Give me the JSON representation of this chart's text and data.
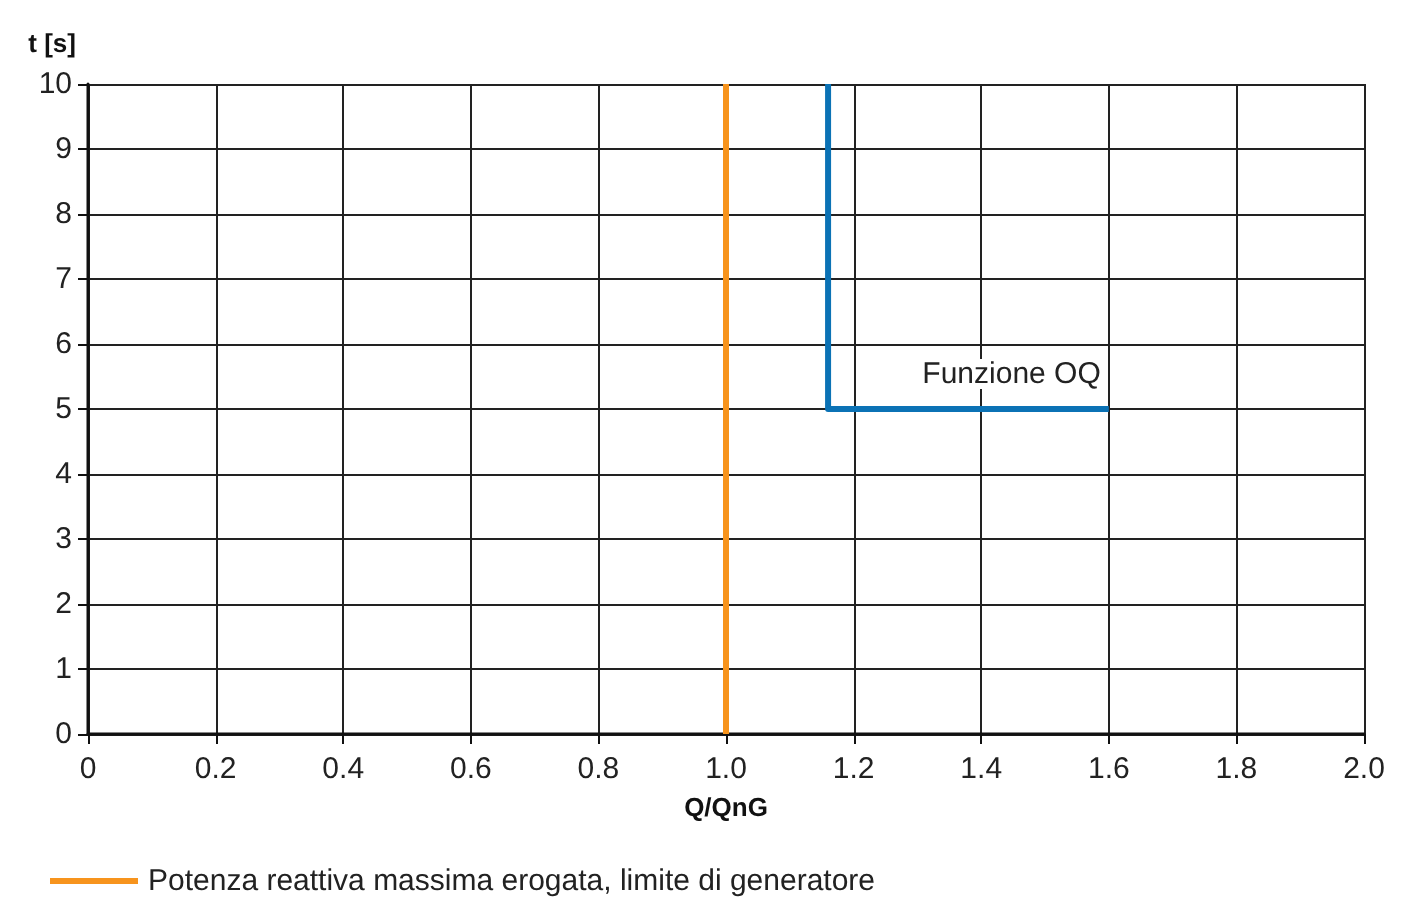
{
  "chart_data": {
    "type": "line",
    "xlabel": "Q/QnG",
    "ylabel": "t [s]",
    "xlim": [
      0,
      2
    ],
    "xticks": [
      0,
      0.2,
      0.4,
      0.6,
      0.8,
      {
        "value": 1,
        "label": "1.0"
      },
      1.2,
      1.4,
      1.6,
      1.8,
      {
        "value": 2,
        "label": "2.0"
      }
    ],
    "ylim": [
      0,
      10
    ],
    "yticks": [
      0,
      1,
      2,
      3,
      4,
      5,
      6,
      7,
      8,
      9,
      10
    ],
    "series": [
      {
        "name": "Potenza reattiva massima erogata, limite di generatore",
        "color": "#f7941d",
        "x": [
          1,
          1
        ],
        "values": [
          0,
          10
        ]
      },
      {
        "color": "#0b72b5",
        "x": [
          1.16,
          1.16,
          1.6
        ],
        "values": [
          10,
          5,
          5
        ]
      }
    ],
    "annotations": [
      "Funzione OQ"
    ],
    "grid": true,
    "legend": "bottom left",
    "marker": "none",
    "line_style": "solid"
  }
}
